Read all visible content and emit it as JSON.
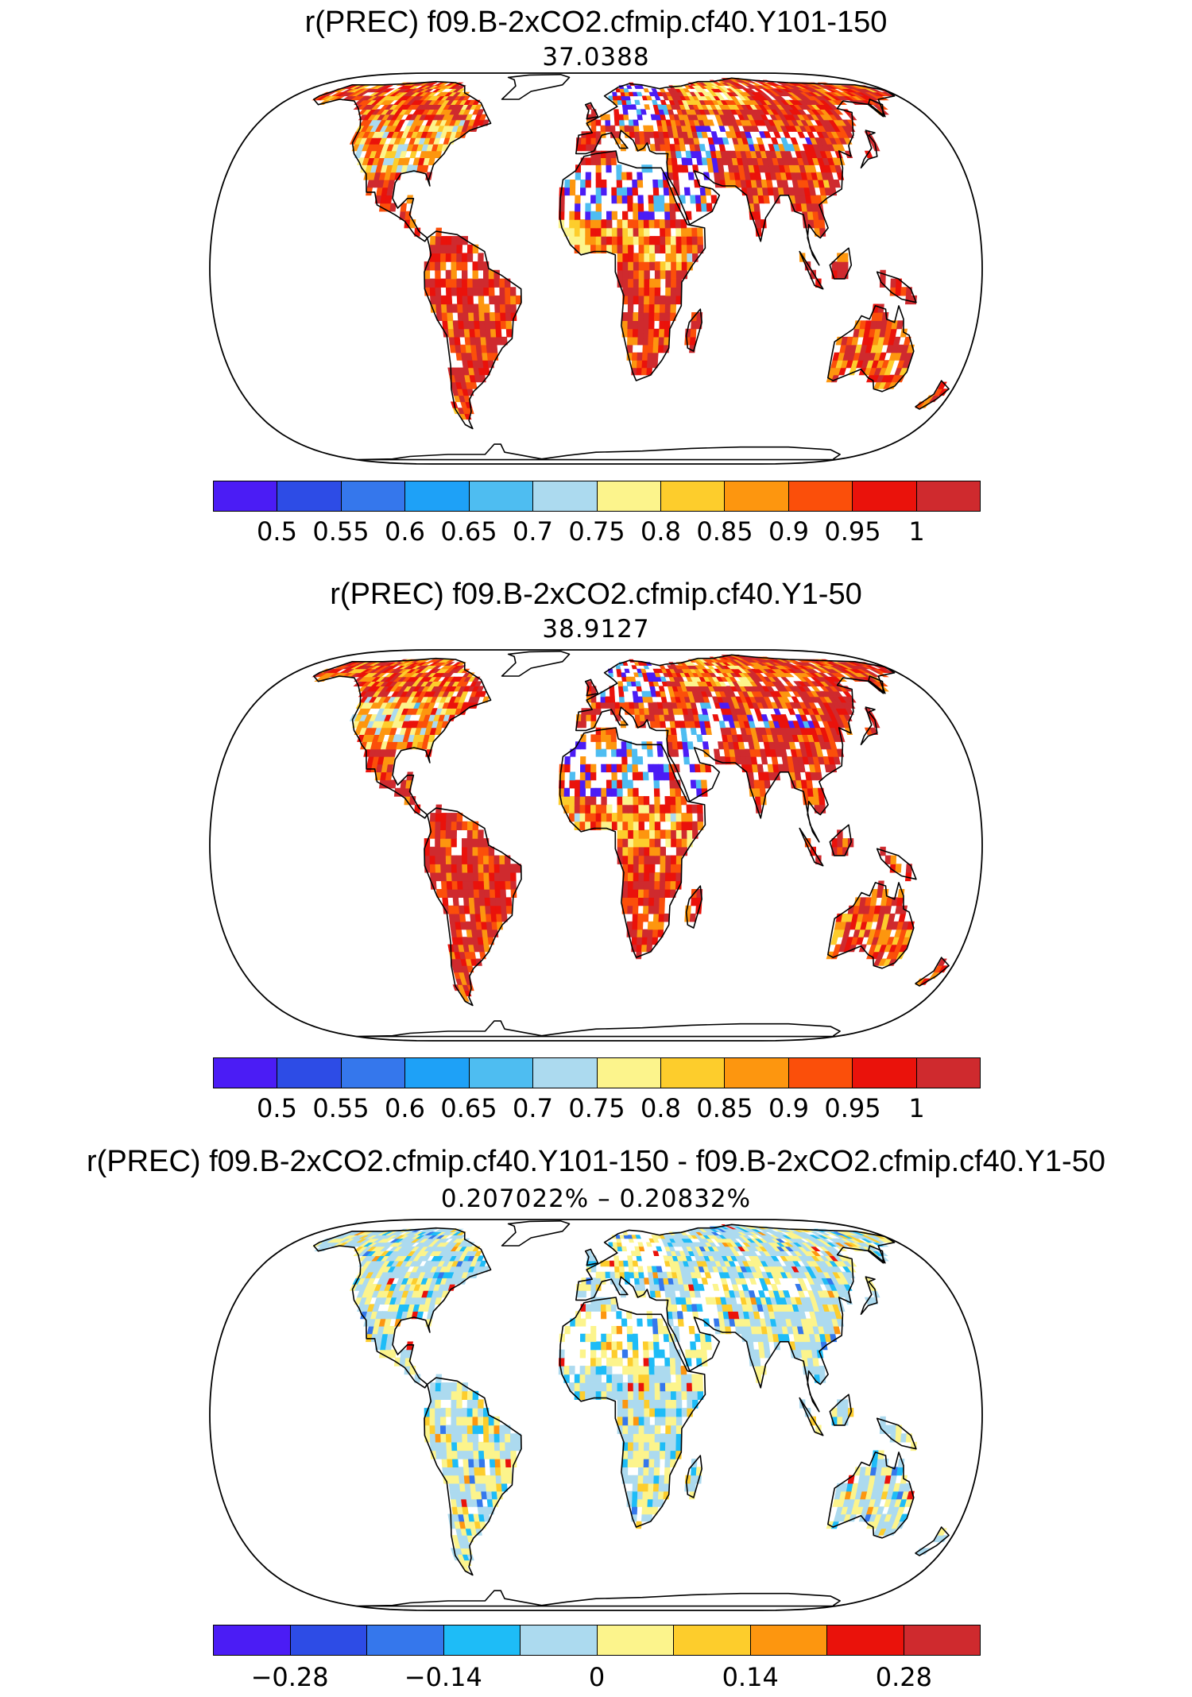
{
  "panels": [
    {
      "title": "r(PREC) f09.B-2xCO2.cfmip.cf40.Y101-150",
      "subtitle": "37.0388",
      "scheme": "corr",
      "colorbar": {
        "colors": [
          "#4b1cf5",
          "#2d4ce6",
          "#3577ec",
          "#1ea1f7",
          "#4ebdf1",
          "#acdaef",
          "#fcf48c",
          "#fdcd2c",
          "#fd960f",
          "#fb4f0a",
          "#ea120b",
          "#cf2a2e"
        ],
        "tick_labels": [
          "0.5",
          "0.55",
          "0.6",
          "0.65",
          "0.7",
          "0.75",
          "0.8",
          "0.85",
          "0.9",
          "0.95",
          "1"
        ]
      }
    },
    {
      "title": "r(PREC) f09.B-2xCO2.cfmip.cf40.Y1-50",
      "subtitle": "38.9127",
      "scheme": "corr",
      "colorbar": {
        "colors": [
          "#4b1cf5",
          "#2d4ce6",
          "#3577ec",
          "#1ea1f7",
          "#4ebdf1",
          "#acdaef",
          "#fcf48c",
          "#fdcd2c",
          "#fd960f",
          "#fb4f0a",
          "#ea120b",
          "#cf2a2e"
        ],
        "tick_labels": [
          "0.5",
          "0.55",
          "0.6",
          "0.65",
          "0.7",
          "0.75",
          "0.8",
          "0.85",
          "0.9",
          "0.95",
          "1"
        ]
      }
    },
    {
      "title": "r(PREC) f09.B-2xCO2.cfmip.cf40.Y101-150 - f09.B-2xCO2.cfmip.cf40.Y1-50",
      "subtitle": "0.207022% – 0.20832%",
      "scheme": "diff",
      "colorbar": {
        "colors": [
          "#4b1cf5",
          "#2d4ce6",
          "#3577ec",
          "#1ebcf7",
          "#acdaef",
          "#fcf48c",
          "#fdcd2c",
          "#fd960f",
          "#ea120b",
          "#cf2a2e"
        ],
        "tick_labels": [
          "−0.28",
          "−0.14",
          "0",
          "0.14",
          "0.28"
        ]
      }
    }
  ]
}
